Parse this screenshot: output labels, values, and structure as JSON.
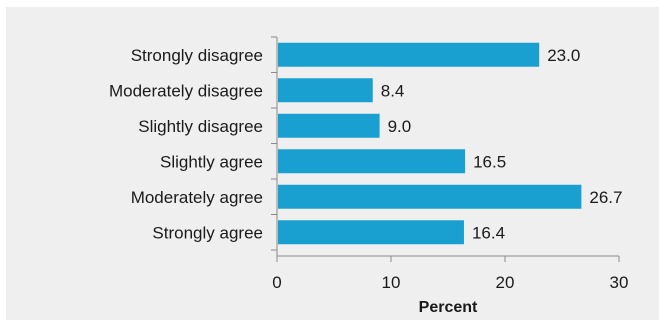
{
  "chart_data": {
    "type": "bar",
    "orientation": "horizontal",
    "categories": [
      "Strongly disagree",
      "Moderately disagree",
      "Slightly disagree",
      "Slightly agree",
      "Moderately agree",
      "Strongly agree"
    ],
    "values": [
      23.0,
      8.4,
      9.0,
      16.5,
      26.7,
      16.4
    ],
    "value_labels": [
      "23.0",
      "8.4",
      "9.0",
      "16.5",
      "26.7",
      "16.4"
    ],
    "xlabel": "Percent",
    "xlim": [
      0,
      30
    ],
    "xticks": [
      0,
      10,
      20,
      30
    ],
    "grid": false,
    "legend": "none",
    "bar_color": "#1aa0d0",
    "background_color": "#efefef"
  }
}
